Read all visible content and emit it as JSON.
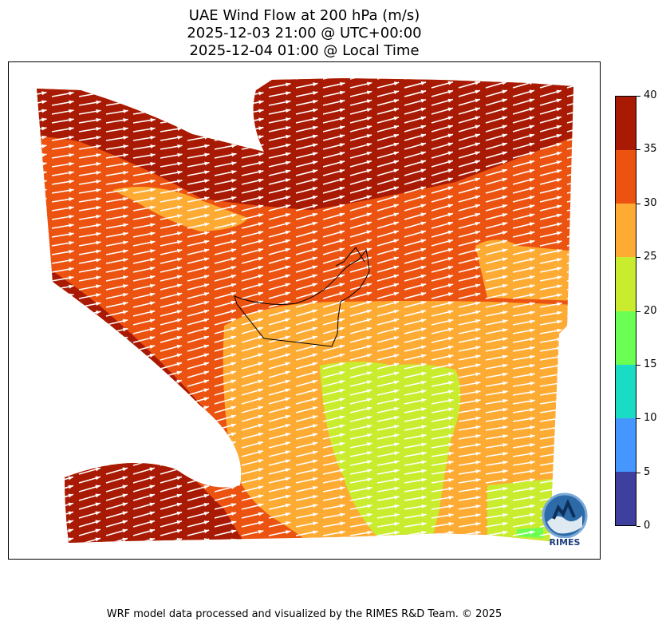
{
  "title": {
    "line1": "UAE Wind Flow at 200 hPa (m/s)",
    "line2": "2025-12-03 21:00 @ UTC+00:00",
    "line3": "2025-12-04 01:00 @ Local Time"
  },
  "colorbar": {
    "min": 0,
    "max": 40,
    "levels": [
      {
        "from": 0,
        "to": 5,
        "color": "#3f3f9e"
      },
      {
        "from": 5,
        "to": 10,
        "color": "#4597ff"
      },
      {
        "from": 10,
        "to": 15,
        "color": "#1adbc4"
      },
      {
        "from": 15,
        "to": 20,
        "color": "#6aff52"
      },
      {
        "from": 20,
        "to": 25,
        "color": "#c9ec2f"
      },
      {
        "from": 25,
        "to": 30,
        "color": "#fdab33"
      },
      {
        "from": 30,
        "to": 35,
        "color": "#ec5310"
      },
      {
        "from": 35,
        "to": 40,
        "color": "#a81a03"
      }
    ],
    "tick_labels": [
      "0",
      "5",
      "10",
      "15",
      "20",
      "25",
      "30",
      "35",
      "40"
    ]
  },
  "map": {
    "region": "UAE",
    "wind_direction": "west-southwest to east-northeast",
    "vector_color": "#ffffff",
    "boundary_color": "#000000"
  },
  "logo": {
    "text": "RIMES"
  },
  "footer": "WRF model data processed and visualized by the RIMES R&D Team. © 2025"
}
